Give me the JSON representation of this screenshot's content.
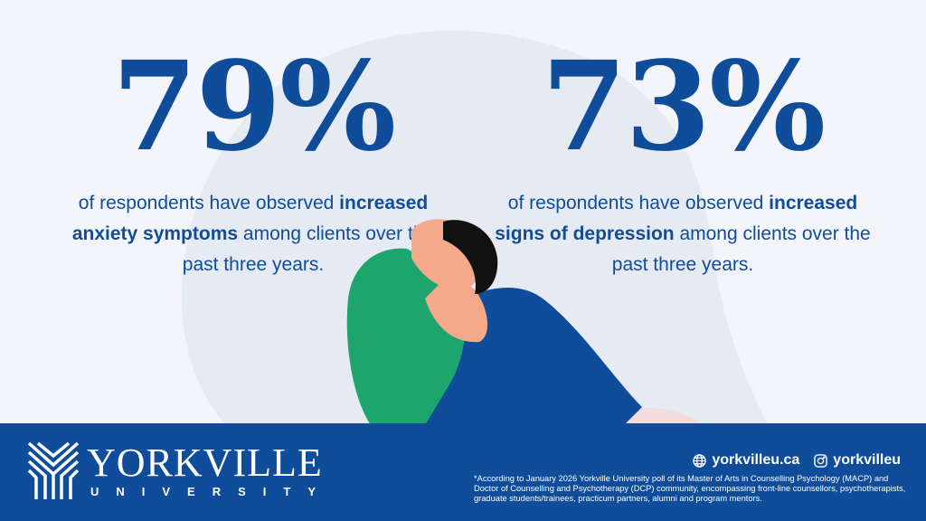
{
  "stats": [
    {
      "value": "79%",
      "pre": "of respondents have observed ",
      "bold": "increased anxiety symptoms",
      "post": " among clients over the past three years."
    },
    {
      "value": "73%",
      "pre": "of respondents have observed ",
      "bold": "increased signs of depression",
      "post": " among clients over the past three years."
    }
  ],
  "footer": {
    "brand": "YORKVILLE",
    "sub": "UNIVERSITY",
    "website": "yorkvilleu.ca",
    "instagram": "yorkvilleu",
    "note": "*According to January 2026 Yorkville University poll of its Master of Arts in Counselling Psychology (MACP) and Doctor of Counselling and Psychotherapy (DCP) community, encompassing front-line counsellors, psychotherapists, graduate students/trainees, practicum partners, alumni and program mentors."
  },
  "colors": {
    "brand_blue": "#0f4c9a",
    "background": "#f3f5fa",
    "shirt": "#1ea56e",
    "skin": "#f4a98b"
  }
}
